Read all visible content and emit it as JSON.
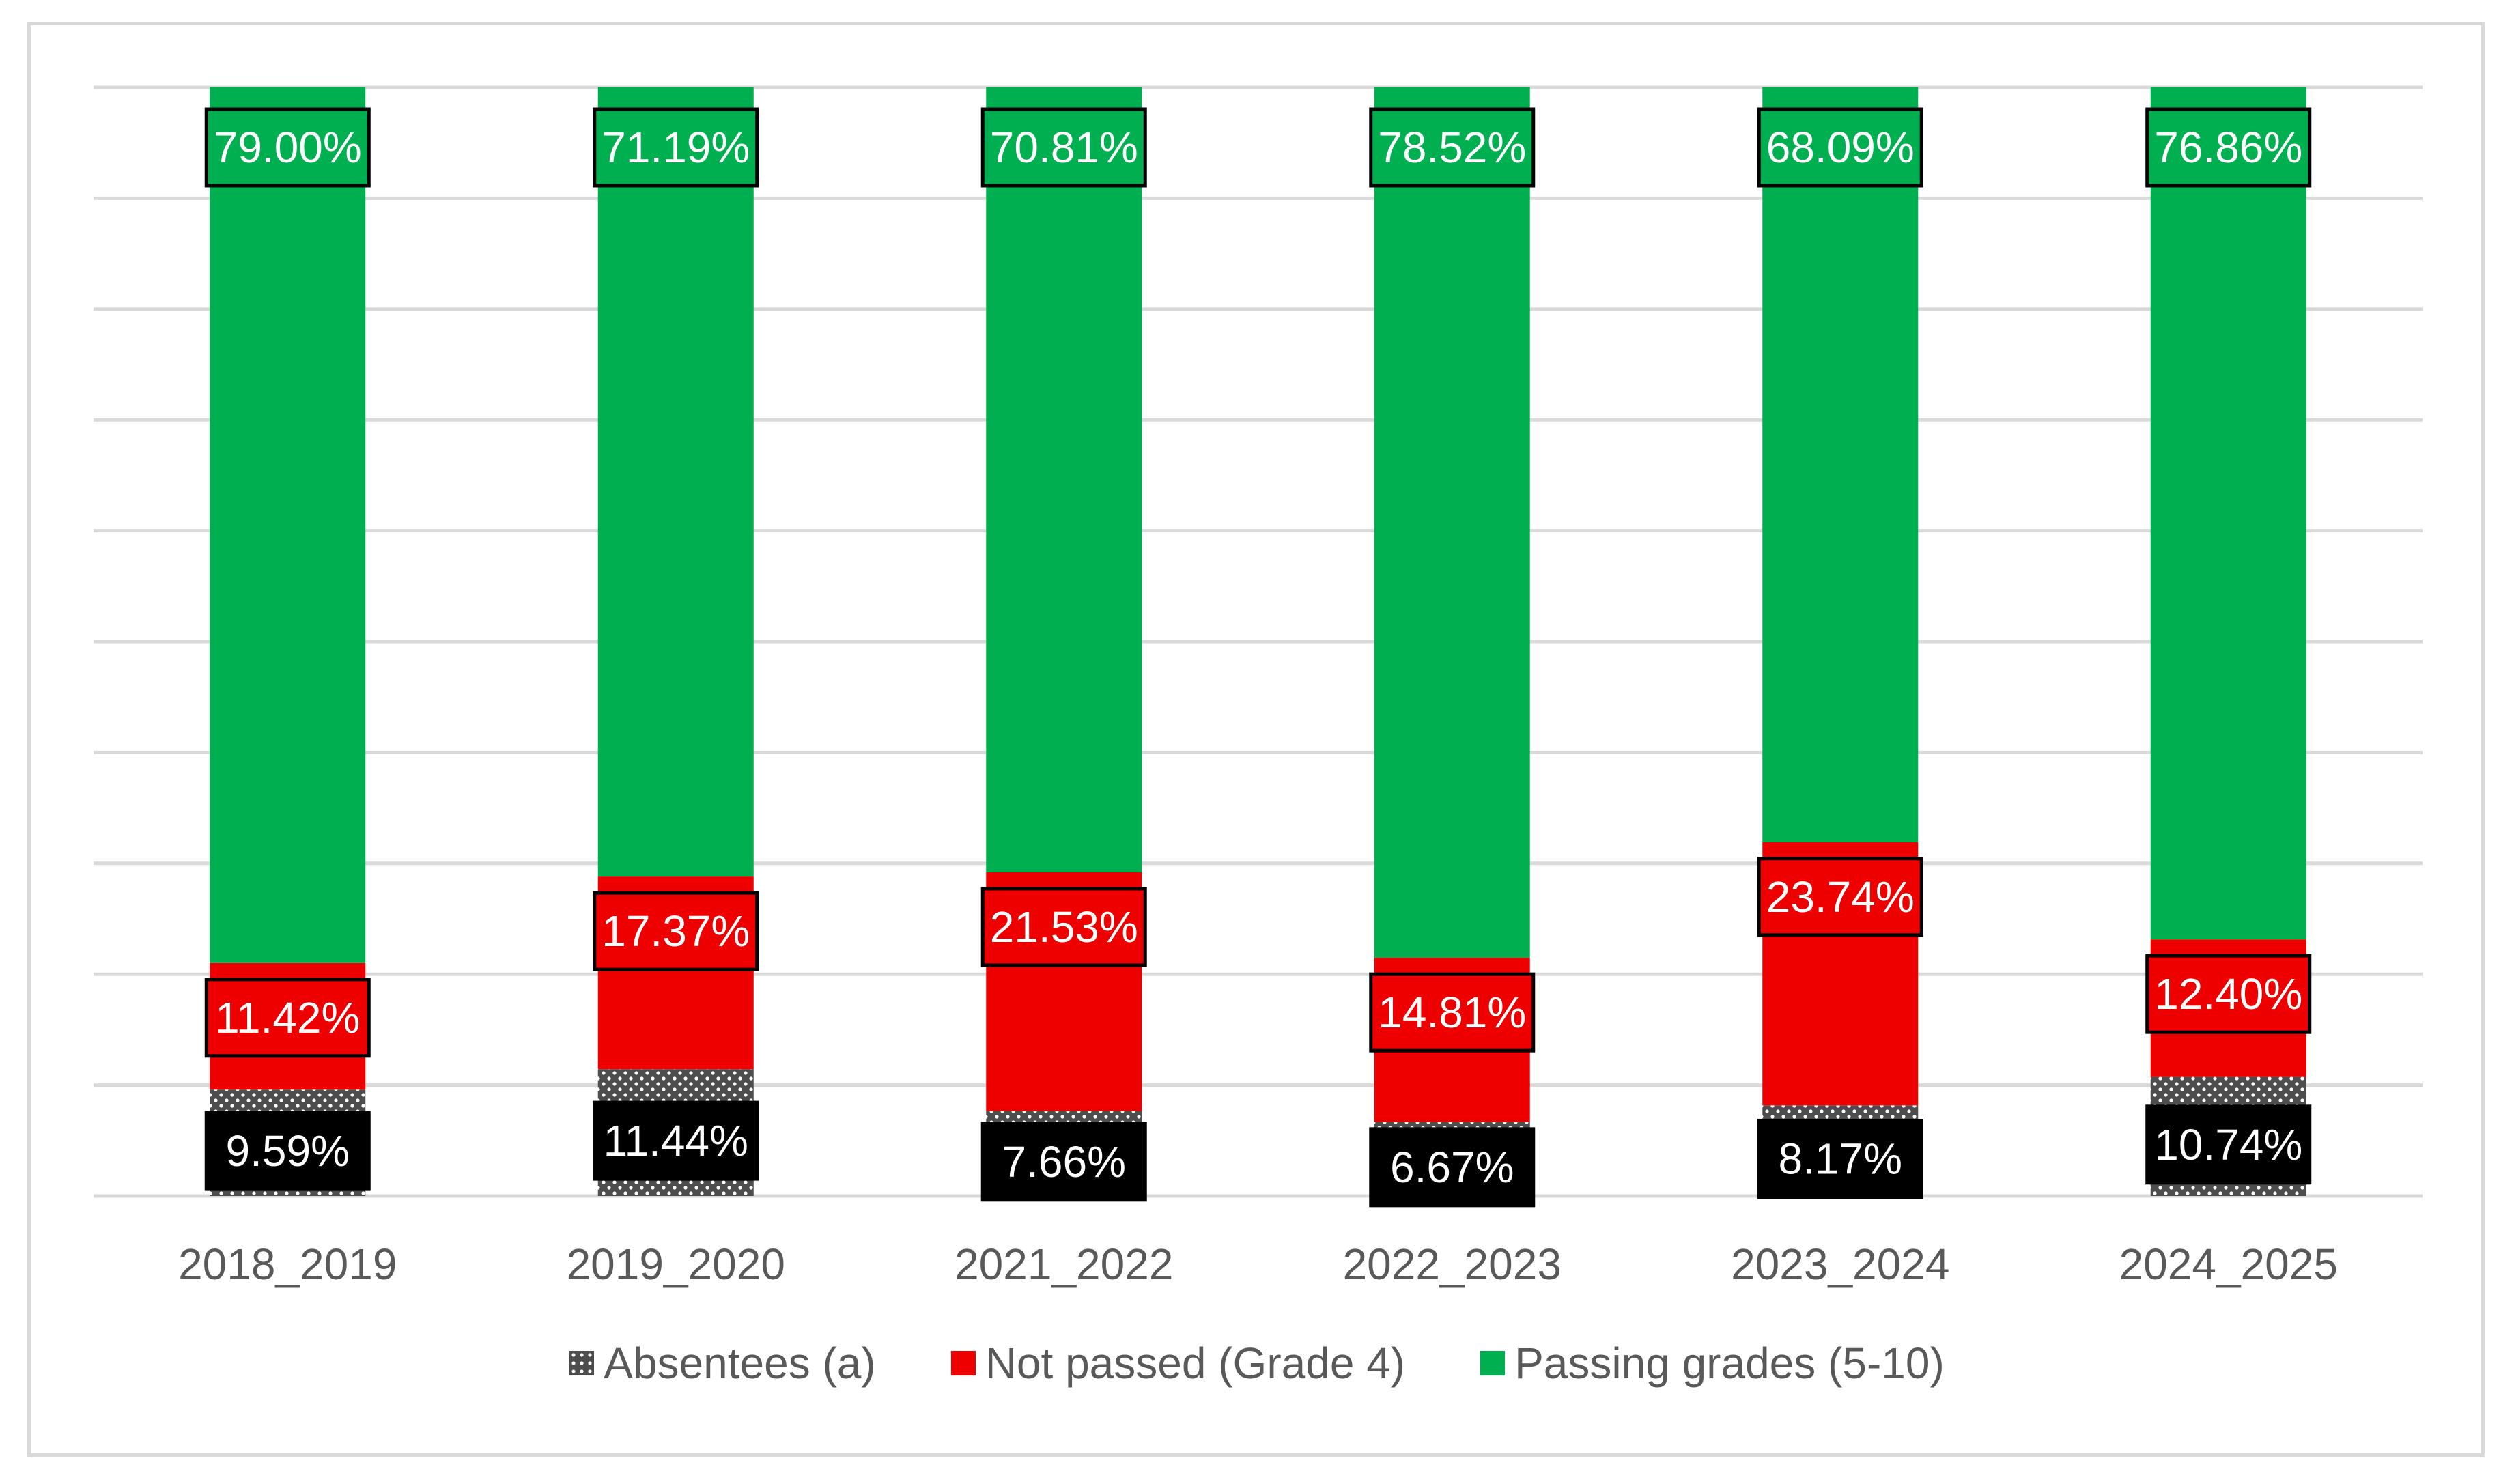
{
  "chart_data": {
    "type": "bar",
    "stacked": true,
    "title": "",
    "xlabel": "",
    "ylabel": "",
    "ylim": [
      0,
      100
    ],
    "grid": true,
    "legend_position": "bottom",
    "categories": [
      "2018_2019",
      "2019_2020",
      "2021_2022",
      "2022_2023",
      "2023_2024",
      "2024_2025"
    ],
    "series": [
      {
        "name": "Absentees (a)",
        "color": "#4d4d4d",
        "label_bg": "#000000",
        "values": [
          9.59,
          11.44,
          7.66,
          6.67,
          8.17,
          10.74
        ],
        "labels": [
          "9.59%",
          "11.44%",
          "7.66%",
          "6.67%",
          "8.17%",
          "10.74%"
        ]
      },
      {
        "name": "Not passed (Grade 4)",
        "color": "#ee0000",
        "label_bg": "#ee0000",
        "values": [
          11.42,
          17.37,
          21.53,
          14.81,
          23.74,
          12.4
        ],
        "labels": [
          "11.42%",
          "17.37%",
          "21.53%",
          "14.81%",
          "23.74%",
          "12.40%"
        ]
      },
      {
        "name": "Passing grades (5-10)",
        "color": "#00b050",
        "label_bg": "#00b050",
        "values": [
          79.0,
          71.19,
          70.81,
          78.52,
          68.09,
          76.86
        ],
        "labels": [
          "79.00%",
          "71.19%",
          "70.81%",
          "78.52%",
          "68.09%",
          "76.86%"
        ]
      }
    ]
  },
  "legend": {
    "absentees": "Absentees (a)",
    "not_passed": "Not passed (Grade 4)",
    "passing": "Passing grades (5-10)"
  }
}
